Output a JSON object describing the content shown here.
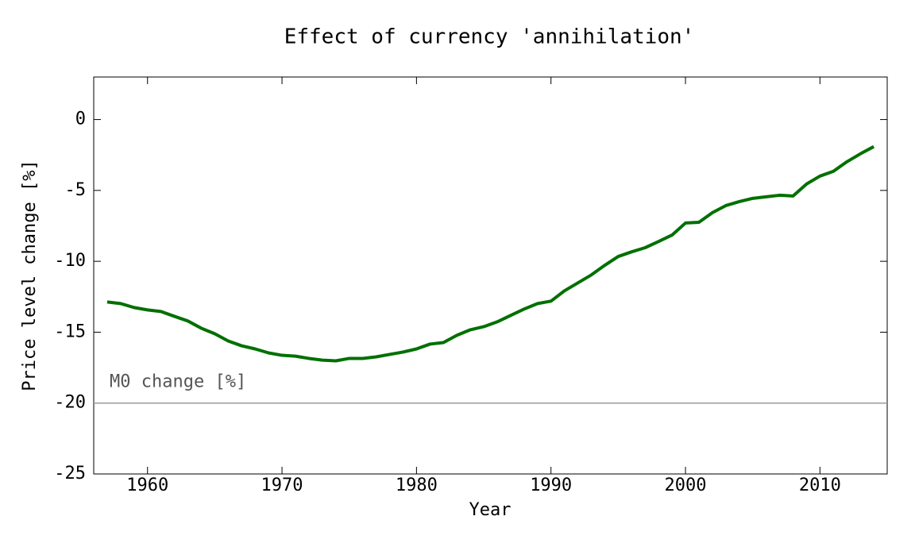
{
  "chart_data": {
    "type": "line",
    "title": "Effect of currency 'annihilation'",
    "xlabel": "Year",
    "ylabel": "Price level change [%]",
    "x": [
      1957,
      1958,
      1959,
      1960,
      1961,
      1962,
      1963,
      1964,
      1965,
      1966,
      1967,
      1968,
      1969,
      1970,
      1971,
      1972,
      1973,
      1974,
      1975,
      1976,
      1977,
      1978,
      1979,
      1980,
      1981,
      1982,
      1983,
      1984,
      1985,
      1986,
      1987,
      1988,
      1989,
      1990,
      1991,
      1992,
      1993,
      1994,
      1995,
      1996,
      1997,
      1998,
      1999,
      2000,
      2001,
      2002,
      2003,
      2004,
      2005,
      2006,
      2007,
      2008,
      2009,
      2010,
      2011,
      2012,
      2013,
      2014
    ],
    "values": [
      -12.87,
      -12.98,
      -13.26,
      -13.43,
      -13.54,
      -13.88,
      -14.21,
      -14.72,
      -15.11,
      -15.62,
      -15.96,
      -16.18,
      -16.46,
      -16.63,
      -16.69,
      -16.85,
      -16.97,
      -17.02,
      -16.85,
      -16.85,
      -16.74,
      -16.57,
      -16.4,
      -16.18,
      -15.84,
      -15.73,
      -15.22,
      -14.83,
      -14.61,
      -14.27,
      -13.82,
      -13.37,
      -12.98,
      -12.81,
      -12.08,
      -11.52,
      -10.96,
      -10.28,
      -9.66,
      -9.33,
      -9.04,
      -8.6,
      -8.15,
      -7.3,
      -7.25,
      -6.57,
      -6.07,
      -5.79,
      -5.56,
      -5.45,
      -5.34,
      -5.39,
      -4.55,
      -3.99,
      -3.65,
      -2.98,
      -2.42,
      -1.91
    ],
    "color": "#007000",
    "xlim": [
      1956,
      2015
    ],
    "xticks": [
      1960,
      1970,
      1980,
      1990,
      2000,
      2010
    ],
    "ylim": [
      -25,
      3
    ],
    "yticks": [
      -25,
      -20,
      -15,
      -10,
      -5,
      0
    ],
    "hline": {
      "value": -20,
      "label": "M0 change [%]",
      "color": "#999999"
    }
  }
}
